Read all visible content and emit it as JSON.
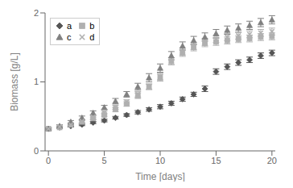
{
  "chart_data": {
    "type": "scatter",
    "xlabel": "Time [days]",
    "ylabel": "Biomass [g/L]",
    "xlim": [
      -0.3,
      20.3
    ],
    "ylim": [
      0,
      2
    ],
    "xticks": [
      0,
      5,
      10,
      15,
      20
    ],
    "yticks": [
      0,
      1,
      2
    ],
    "grid": false,
    "legend": "upper left",
    "x": [
      0,
      1,
      2,
      3,
      4,
      5,
      6,
      7,
      8,
      9,
      10,
      11,
      12,
      13,
      14,
      15,
      16,
      17,
      18,
      19,
      20
    ],
    "series": [
      {
        "name": "a",
        "color": "#555555",
        "marker": "diamond",
        "values": [
          0.32,
          0.34,
          0.36,
          0.38,
          0.41,
          0.44,
          0.48,
          0.52,
          0.56,
          0.6,
          0.64,
          0.69,
          0.75,
          0.82,
          0.9,
          1.15,
          1.22,
          1.28,
          1.32,
          1.38,
          1.42
        ],
        "yerr": [
          0.015,
          0.015,
          0.015,
          0.015,
          0.015,
          0.02,
          0.02,
          0.02,
          0.025,
          0.025,
          0.03,
          0.03,
          0.03,
          0.03,
          0.04,
          0.04,
          0.04,
          0.04,
          0.04,
          0.04,
          0.04
        ]
      },
      {
        "name": "b",
        "color": "#b0b0b0",
        "marker": "square",
        "values": [
          0.32,
          0.34,
          0.38,
          0.42,
          0.47,
          0.52,
          0.6,
          0.68,
          0.8,
          0.93,
          1.06,
          1.3,
          1.42,
          1.5,
          1.56,
          1.58,
          1.6,
          1.62,
          1.63,
          1.65,
          1.66
        ],
        "yerr": [
          0.015,
          0.015,
          0.02,
          0.02,
          0.02,
          0.025,
          0.03,
          0.03,
          0.04,
          0.04,
          0.05,
          0.05,
          0.05,
          0.05,
          0.05,
          0.05,
          0.05,
          0.05,
          0.05,
          0.05,
          0.05
        ]
      },
      {
        "name": "c",
        "color": "#808080",
        "marker": "triangle",
        "values": [
          0.32,
          0.36,
          0.42,
          0.48,
          0.55,
          0.63,
          0.72,
          0.82,
          0.93,
          1.06,
          1.2,
          1.38,
          1.52,
          1.6,
          1.65,
          1.7,
          1.75,
          1.78,
          1.82,
          1.86,
          1.9
        ],
        "yerr": [
          0.015,
          0.02,
          0.02,
          0.025,
          0.03,
          0.03,
          0.04,
          0.04,
          0.05,
          0.06,
          0.06,
          0.06,
          0.06,
          0.06,
          0.06,
          0.06,
          0.06,
          0.06,
          0.06,
          0.06,
          0.06
        ]
      },
      {
        "name": "d",
        "color": "#b0b0b0",
        "marker": "x",
        "values": [
          0.32,
          0.35,
          0.38,
          0.43,
          0.49,
          0.55,
          0.63,
          0.71,
          0.82,
          0.93,
          1.08,
          1.3,
          1.44,
          1.52,
          1.58,
          1.62,
          1.65,
          1.67,
          1.69,
          1.71,
          1.73
        ],
        "yerr": [
          0.015,
          0.015,
          0.02,
          0.02,
          0.025,
          0.03,
          0.03,
          0.03,
          0.04,
          0.04,
          0.05,
          0.05,
          0.05,
          0.05,
          0.05,
          0.05,
          0.05,
          0.05,
          0.05,
          0.05,
          0.05
        ]
      }
    ]
  }
}
